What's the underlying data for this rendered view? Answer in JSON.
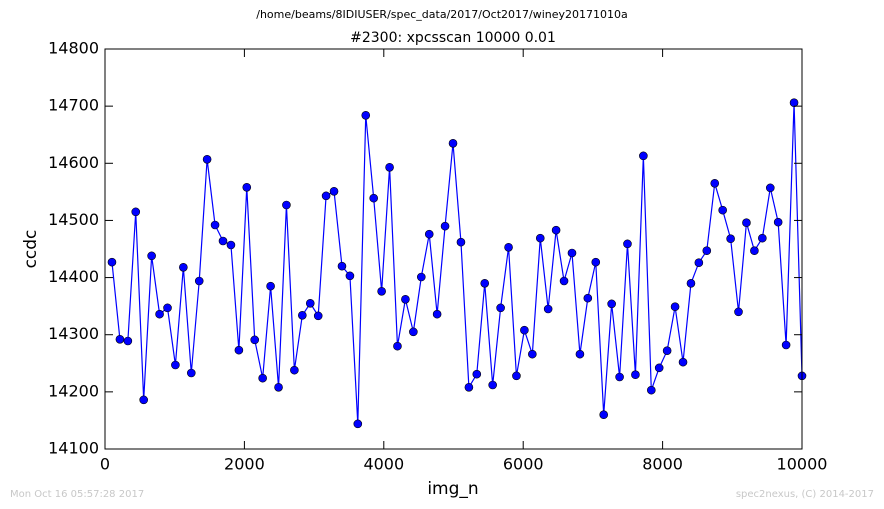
{
  "chart_data": {
    "type": "line",
    "suptitle": "/home/beams/8IDIUSER/spec_data/2017/Oct2017/winey20171010a",
    "title": "#2300: xpcsscan 10000 0.01",
    "x_label": "img_n",
    "y_label": "ccdc",
    "footer_left": "Mon Oct 16 05:57:28 2017",
    "footer_right": "spec2nexus, (C) 2014-2017",
    "x": [
      100,
      214,
      328,
      441,
      555,
      669,
      783,
      897,
      1010,
      1124,
      1238,
      1352,
      1465,
      1579,
      1693,
      1807,
      1921,
      2034,
      2148,
      2262,
      2376,
      2490,
      2603,
      2717,
      2831,
      2945,
      3059,
      3172,
      3286,
      3400,
      3514,
      3627,
      3741,
      3855,
      3969,
      4083,
      4196,
      4310,
      4424,
      4538,
      4652,
      4765,
      4879,
      4993,
      5107,
      5221,
      5334,
      5448,
      5562,
      5676,
      5790,
      5903,
      6017,
      6131,
      6245,
      6358,
      6472,
      6586,
      6700,
      6814,
      6927,
      7041,
      7155,
      7269,
      7383,
      7496,
      7610,
      7724,
      7838,
      7951,
      8065,
      8179,
      8293,
      8407,
      8520,
      8634,
      8748,
      8862,
      8976,
      9089,
      9203,
      9317,
      9431,
      9545,
      9658,
      9772,
      9886,
      10000
    ],
    "series": [
      {
        "color": "#0000ff",
        "marker_color": "#0000ff",
        "values": [
          14427,
          14292,
          14289,
          14515,
          14186,
          14438,
          14336,
          14347,
          14247,
          14418,
          14233,
          14394,
          14607,
          14492,
          14464,
          14457,
          14273,
          14558,
          14291,
          14224,
          14385,
          14208,
          14527,
          14238,
          14334,
          14355,
          14333,
          14543,
          14551,
          14420,
          14403,
          14144,
          14684,
          14539,
          14376,
          14593,
          14280,
          14362,
          14305,
          14401,
          14476,
          14336,
          14490,
          14635,
          14462,
          14208,
          14231,
          14390,
          14212,
          14347,
          14453,
          14228,
          14308,
          14266,
          14469,
          14345,
          14483,
          14394,
          14443,
          14266,
          14364,
          14427,
          14160,
          14354,
          14226,
          14459,
          14230,
          14613,
          14203,
          14242,
          14272,
          14349,
          14252,
          14390,
          14426,
          14447,
          14565,
          14518,
          14468,
          14340,
          14496,
          14447,
          14469,
          14557,
          14497,
          14282,
          14706,
          14228
        ]
      }
    ],
    "xlim": [
      0,
      10000
    ],
    "xticks": [
      0,
      2000,
      4000,
      6000,
      8000,
      10000
    ],
    "ylim": [
      14100,
      14800
    ],
    "yticks": [
      14100,
      14200,
      14300,
      14400,
      14500,
      14600,
      14700,
      14800
    ],
    "grid": false
  }
}
